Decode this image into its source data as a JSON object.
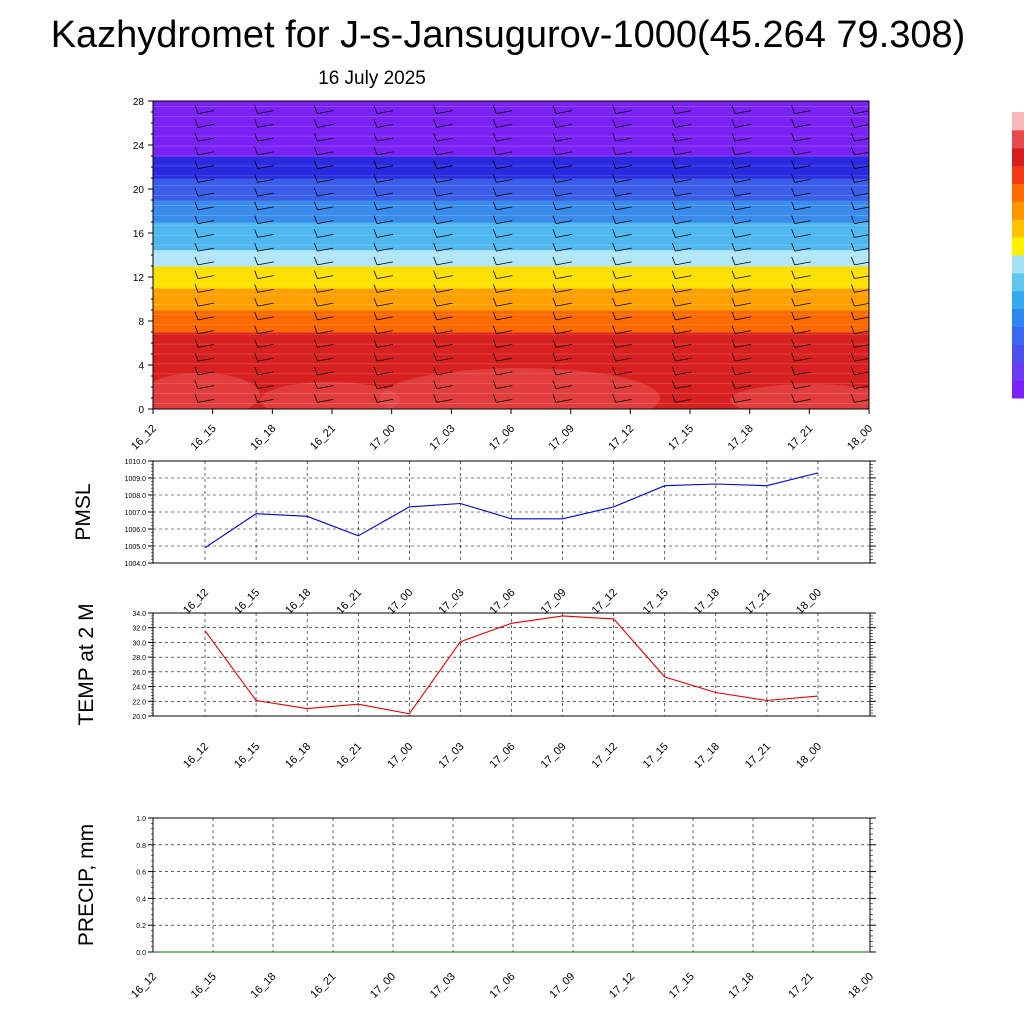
{
  "title": "Kazhydromet for J-s-Jansugurov-1000(45.264 79.308)",
  "subtitle": "16 July 2025",
  "colorbar": {
    "colors": [
      "#7a22f5",
      "#6a3df2",
      "#4a52ea",
      "#3868ee",
      "#2f86f0",
      "#35a8ee",
      "#60c6f0",
      "#a6e0f6",
      "#fff000",
      "#ffc200",
      "#ff9600",
      "#ff6a00",
      "#f33a16",
      "#d41e1e",
      "#e64a4a",
      "#f6b8b8"
    ]
  },
  "chart_data": [
    {
      "type": "heatmap",
      "name": "cross-section",
      "x_ticks": [
        "16_12",
        "16_15",
        "16_18",
        "16_21",
        "17_00",
        "17_03",
        "17_06",
        "17_09",
        "17_12",
        "17_15",
        "17_18",
        "17_21",
        "18_00"
      ],
      "y_ticks": [
        "0",
        "4",
        "8",
        "12",
        "16",
        "20",
        "24",
        "28"
      ],
      "ylim": [
        0,
        28
      ],
      "levels_rows_bottom_to_top": [
        {
          "from": 0,
          "to": 7,
          "color": "#d92020"
        },
        {
          "from": 7,
          "to": 9,
          "color": "#ff6a00"
        },
        {
          "from": 9,
          "to": 11,
          "color": "#ffa000"
        },
        {
          "from": 11,
          "to": 13,
          "color": "#ffe000"
        },
        {
          "from": 13,
          "to": 14.5,
          "color": "#b0e6f6"
        },
        {
          "from": 14.5,
          "to": 17,
          "color": "#50b8f0"
        },
        {
          "from": 17,
          "to": 19,
          "color": "#3a8cec"
        },
        {
          "from": 19,
          "to": 21,
          "color": "#3a5ee8"
        },
        {
          "from": 21,
          "to": 23,
          "color": "#2a2ae0"
        },
        {
          "from": 23,
          "to": 28,
          "color": "#7a22f5"
        }
      ]
    },
    {
      "type": "line",
      "name": "PMSL",
      "ylabel": "PMSL",
      "categories": [
        "16_12",
        "16_15",
        "16_18",
        "16_21",
        "17_00",
        "17_03",
        "17_06",
        "17_09",
        "17_12",
        "17_15",
        "17_18",
        "17_21",
        "18_00"
      ],
      "y_ticks": [
        "1004.0",
        "1005.0",
        "1006.0",
        "1007.0",
        "1008.0",
        "1009.0",
        "1010.0"
      ],
      "ylim": [
        1004,
        1010
      ],
      "color": "#0000cc",
      "values": [
        1004.9,
        1006.9,
        1006.75,
        1005.6,
        1007.3,
        1007.5,
        1006.6,
        1006.6,
        1007.3,
        1008.55,
        1008.65,
        1008.55,
        1009.3
      ]
    },
    {
      "type": "line",
      "name": "TEMP at 2 M",
      "ylabel": "TEMP at 2 M",
      "categories": [
        "16_12",
        "16_15",
        "16_18",
        "16_21",
        "17_00",
        "17_03",
        "17_06",
        "17_09",
        "17_12",
        "17_15",
        "17_18",
        "17_21",
        "18_00"
      ],
      "y_ticks": [
        "20.0",
        "22.0",
        "24.0",
        "26.0",
        "28.0",
        "30.0",
        "32.0",
        "34.0"
      ],
      "ylim": [
        20,
        34
      ],
      "color": "#e00000",
      "values": [
        31.6,
        22.1,
        21.0,
        21.6,
        20.3,
        30.1,
        32.6,
        33.6,
        33.2,
        25.3,
        23.2,
        22.1,
        22.7
      ]
    },
    {
      "type": "line",
      "name": "PRECIP, mm",
      "ylabel": "PRECIP, mm",
      "categories": [
        "16_12",
        "16_15",
        "16_18",
        "16_21",
        "17_00",
        "17_03",
        "17_06",
        "17_09",
        "17_12",
        "17_15",
        "17_18",
        "17_21",
        "18_00"
      ],
      "y_ticks": [
        "0.0",
        "0.2",
        "0.4",
        "0.6",
        "0.8",
        "1.0"
      ],
      "ylim": [
        0,
        1
      ],
      "color": "#007000",
      "values": [
        0,
        0,
        0,
        0,
        0,
        0,
        0,
        0,
        0,
        0,
        0,
        0,
        0
      ]
    }
  ]
}
